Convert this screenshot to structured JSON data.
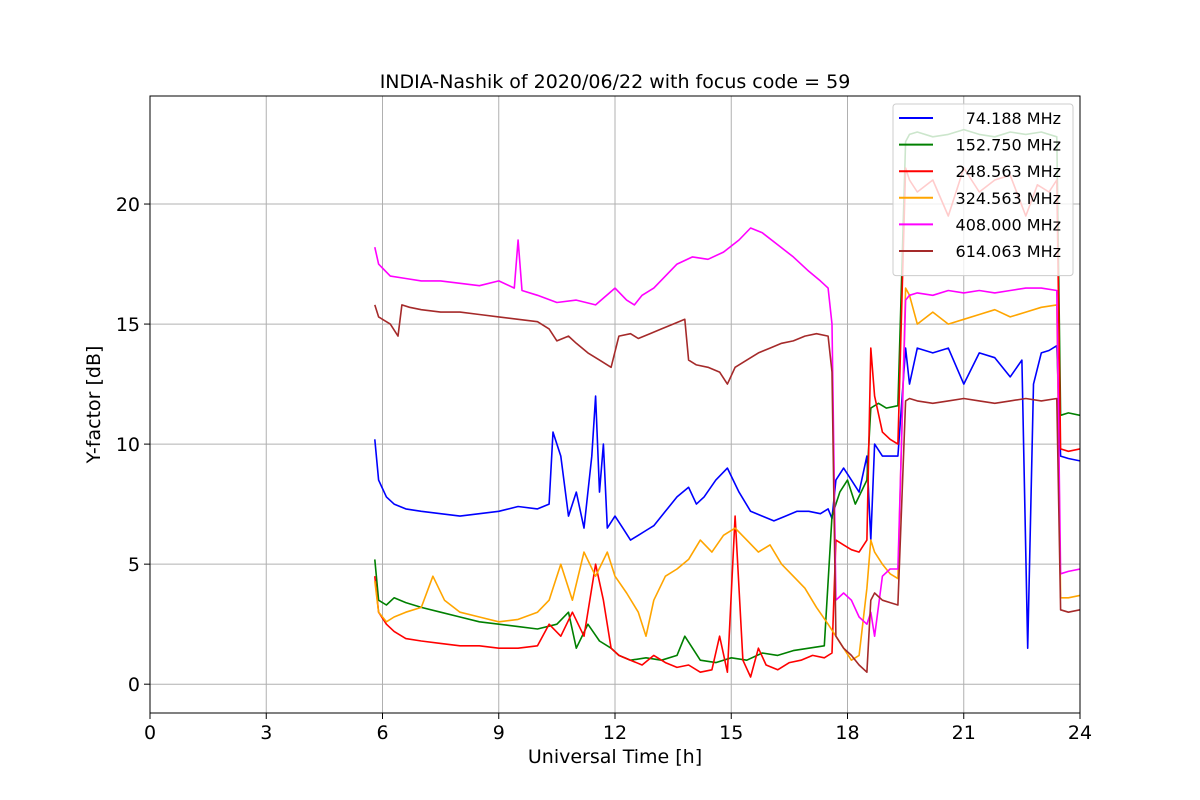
{
  "chart_data": {
    "type": "line",
    "title": "INDIA-Nashik of 2020/06/22 with focus code = 59",
    "xlabel": "Universal Time [h]",
    "ylabel": "Y-factor [dB]",
    "xlim": [
      0,
      24
    ],
    "ylim": [
      -1.2,
      24.5
    ],
    "xticks": [
      0,
      3,
      6,
      9,
      12,
      15,
      18,
      21,
      24
    ],
    "yticks": [
      0,
      5,
      10,
      15,
      20
    ],
    "grid": true,
    "legend_position": "top-right",
    "series": [
      {
        "name": "74.188 MHz",
        "color": "#0000ff",
        "x": [
          5.8,
          5.9,
          6.1,
          6.3,
          6.6,
          7.0,
          7.5,
          8.0,
          8.5,
          9.0,
          9.5,
          10.0,
          10.3,
          10.4,
          10.6,
          10.8,
          11.0,
          11.2,
          11.4,
          11.5,
          11.6,
          11.7,
          11.8,
          12.0,
          12.2,
          12.4,
          12.6,
          12.8,
          13.0,
          13.3,
          13.6,
          13.9,
          14.1,
          14.3,
          14.6,
          14.9,
          15.2,
          15.5,
          15.8,
          16.1,
          16.4,
          16.7,
          17.0,
          17.3,
          17.5,
          17.6,
          17.7,
          17.9,
          18.1,
          18.3,
          18.5,
          18.6,
          18.7,
          18.9,
          19.1,
          19.3,
          19.5,
          19.6,
          19.8,
          20.2,
          20.6,
          21.0,
          21.4,
          21.8,
          22.2,
          22.5,
          22.65,
          22.8,
          23.0,
          23.2,
          23.4,
          23.5,
          23.7,
          24.0
        ],
        "y": [
          10.2,
          8.5,
          7.8,
          7.5,
          7.3,
          7.2,
          7.1,
          7.0,
          7.1,
          7.2,
          7.4,
          7.3,
          7.5,
          10.5,
          9.5,
          7.0,
          8.0,
          6.5,
          9.5,
          12.0,
          8.0,
          10.0,
          6.5,
          7.0,
          6.5,
          6.0,
          6.2,
          6.4,
          6.6,
          7.2,
          7.8,
          8.2,
          7.5,
          7.8,
          8.5,
          9.0,
          8.0,
          7.2,
          7.0,
          6.8,
          7.0,
          7.2,
          7.2,
          7.1,
          7.3,
          6.9,
          8.5,
          9.0,
          8.5,
          8.0,
          9.5,
          6.0,
          10.0,
          9.5,
          9.5,
          9.5,
          14.0,
          12.5,
          14.0,
          13.8,
          14.0,
          12.5,
          13.8,
          13.6,
          12.8,
          13.5,
          1.5,
          12.5,
          13.8,
          13.9,
          14.1,
          9.5,
          9.4,
          9.3
        ]
      },
      {
        "name": "152.750 MHz",
        "color": "#008000",
        "x": [
          5.8,
          5.9,
          6.1,
          6.3,
          6.6,
          7.0,
          7.5,
          8.0,
          8.5,
          9.0,
          9.5,
          10.0,
          10.5,
          10.8,
          11.0,
          11.3,
          11.6,
          11.9,
          12.1,
          12.4,
          12.8,
          13.2,
          13.6,
          13.8,
          14.2,
          14.6,
          15.0,
          15.4,
          15.8,
          16.2,
          16.6,
          17.0,
          17.4,
          17.6,
          17.8,
          18.0,
          18.2,
          18.5,
          18.6,
          18.8,
          19.0,
          19.3,
          19.5,
          19.6,
          19.8,
          20.2,
          20.6,
          21.0,
          21.4,
          21.8,
          22.2,
          22.6,
          23.0,
          23.4,
          23.5,
          23.7,
          24.0
        ],
        "y": [
          5.2,
          3.5,
          3.3,
          3.6,
          3.4,
          3.2,
          3.0,
          2.8,
          2.6,
          2.5,
          2.4,
          2.3,
          2.5,
          3.0,
          1.5,
          2.5,
          1.8,
          1.5,
          1.2,
          1.0,
          1.1,
          1.0,
          1.2,
          2.0,
          1.0,
          0.9,
          1.1,
          1.0,
          1.3,
          1.2,
          1.4,
          1.5,
          1.6,
          7.0,
          8.0,
          8.5,
          7.5,
          8.5,
          11.5,
          11.7,
          11.5,
          11.6,
          22.6,
          22.9,
          23.0,
          22.8,
          22.9,
          23.1,
          22.9,
          22.8,
          23.0,
          22.9,
          23.0,
          22.8,
          11.2,
          11.3,
          11.2
        ]
      },
      {
        "name": "248.563 MHz",
        "color": "#ff0000",
        "x": [
          5.8,
          5.9,
          6.1,
          6.3,
          6.6,
          7.0,
          7.5,
          8.0,
          8.5,
          9.0,
          9.5,
          10.0,
          10.3,
          10.6,
          10.9,
          11.2,
          11.5,
          11.7,
          11.9,
          12.1,
          12.4,
          12.7,
          13.0,
          13.3,
          13.6,
          13.9,
          14.2,
          14.5,
          14.7,
          14.9,
          15.1,
          15.3,
          15.5,
          15.7,
          15.9,
          16.2,
          16.5,
          16.8,
          17.1,
          17.4,
          17.6,
          17.7,
          17.9,
          18.1,
          18.3,
          18.5,
          18.6,
          18.7,
          18.9,
          19.1,
          19.3,
          19.5,
          19.6,
          19.8,
          20.2,
          20.6,
          21.0,
          21.4,
          21.8,
          22.2,
          22.6,
          22.9,
          23.2,
          23.4,
          23.5,
          23.7,
          24.0
        ],
        "y": [
          4.5,
          3.0,
          2.5,
          2.2,
          1.9,
          1.8,
          1.7,
          1.6,
          1.6,
          1.5,
          1.5,
          1.6,
          2.5,
          2.0,
          3.0,
          2.0,
          5.0,
          3.5,
          1.5,
          1.2,
          1.0,
          0.8,
          1.2,
          0.9,
          0.7,
          0.8,
          0.5,
          0.6,
          2.0,
          0.5,
          7.0,
          1.0,
          0.3,
          1.5,
          0.8,
          0.6,
          0.9,
          1.0,
          1.2,
          1.1,
          1.3,
          6.0,
          5.8,
          5.6,
          5.5,
          6.0,
          14.0,
          12.0,
          10.5,
          10.2,
          10.0,
          21.5,
          21.0,
          20.5,
          21.0,
          19.5,
          21.5,
          20.5,
          21.0,
          21.2,
          19.5,
          20.8,
          20.5,
          21.0,
          9.8,
          9.7,
          9.8
        ]
      },
      {
        "name": "324.563 MHz",
        "color": "#ffa500",
        "x": [
          5.8,
          5.9,
          6.1,
          6.3,
          6.6,
          7.0,
          7.3,
          7.6,
          8.0,
          8.5,
          9.0,
          9.5,
          10.0,
          10.3,
          10.6,
          10.9,
          11.2,
          11.5,
          11.8,
          12.0,
          12.3,
          12.6,
          12.8,
          13.0,
          13.3,
          13.6,
          13.9,
          14.2,
          14.5,
          14.8,
          15.1,
          15.4,
          15.7,
          16.0,
          16.3,
          16.6,
          16.9,
          17.2,
          17.5,
          17.7,
          17.9,
          18.1,
          18.3,
          18.5,
          18.6,
          18.7,
          18.9,
          19.1,
          19.3,
          19.5,
          19.6,
          19.8,
          20.2,
          20.6,
          21.0,
          21.4,
          21.8,
          22.2,
          22.6,
          23.0,
          23.4,
          23.5,
          23.7,
          24.0
        ],
        "y": [
          4.3,
          3.0,
          2.6,
          2.8,
          3.0,
          3.2,
          4.5,
          3.5,
          3.0,
          2.8,
          2.6,
          2.7,
          3.0,
          3.5,
          5.0,
          3.5,
          5.5,
          4.5,
          5.5,
          4.5,
          3.8,
          3.0,
          2.0,
          3.5,
          4.5,
          4.8,
          5.2,
          6.0,
          5.5,
          6.2,
          6.5,
          6.0,
          5.5,
          5.8,
          5.0,
          4.5,
          4.0,
          3.2,
          2.5,
          2.0,
          1.5,
          1.0,
          1.2,
          4.0,
          6.0,
          5.5,
          5.0,
          4.6,
          4.4,
          16.5,
          16.2,
          15.0,
          15.5,
          15.0,
          15.2,
          15.4,
          15.6,
          15.3,
          15.5,
          15.7,
          15.8,
          3.6,
          3.6,
          3.7
        ]
      },
      {
        "name": "408.000 MHz",
        "color": "#ff00ff",
        "x": [
          5.8,
          5.9,
          6.2,
          6.6,
          7.0,
          7.5,
          8.0,
          8.5,
          9.0,
          9.4,
          9.5,
          9.6,
          10.0,
          10.5,
          11.0,
          11.5,
          12.0,
          12.3,
          12.5,
          12.7,
          13.0,
          13.3,
          13.6,
          14.0,
          14.4,
          14.8,
          15.2,
          15.5,
          15.8,
          16.2,
          16.6,
          17.0,
          17.3,
          17.5,
          17.6,
          17.7,
          17.9,
          18.1,
          18.3,
          18.5,
          18.6,
          18.7,
          18.9,
          19.1,
          19.3,
          19.5,
          19.6,
          19.8,
          20.2,
          20.6,
          21.0,
          21.4,
          21.8,
          22.2,
          22.6,
          23.0,
          23.4,
          23.5,
          23.7,
          24.0
        ],
        "y": [
          18.2,
          17.5,
          17.0,
          16.9,
          16.8,
          16.8,
          16.7,
          16.6,
          16.8,
          16.5,
          18.5,
          16.4,
          16.2,
          15.9,
          16.0,
          15.8,
          16.5,
          16.0,
          15.8,
          16.2,
          16.5,
          17.0,
          17.5,
          17.8,
          17.7,
          18.0,
          18.5,
          19.0,
          18.8,
          18.3,
          17.8,
          17.2,
          16.8,
          16.5,
          15.0,
          3.5,
          3.8,
          3.5,
          2.8,
          2.5,
          3.0,
          2.0,
          4.5,
          4.8,
          4.8,
          16.0,
          16.2,
          16.3,
          16.2,
          16.4,
          16.3,
          16.4,
          16.3,
          16.4,
          16.5,
          16.5,
          16.4,
          4.6,
          4.7,
          4.8
        ]
      },
      {
        "name": "614.063 MHz",
        "color": "#a52a2a",
        "x": [
          5.8,
          5.9,
          6.2,
          6.4,
          6.5,
          6.7,
          7.0,
          7.5,
          8.0,
          8.5,
          9.0,
          9.5,
          10.0,
          10.3,
          10.5,
          10.8,
          11.0,
          11.3,
          11.6,
          11.9,
          12.1,
          12.4,
          12.6,
          12.9,
          13.2,
          13.5,
          13.8,
          13.9,
          14.1,
          14.4,
          14.7,
          14.9,
          15.1,
          15.4,
          15.7,
          16.0,
          16.3,
          16.6,
          16.9,
          17.2,
          17.5,
          17.6,
          17.7,
          17.9,
          18.1,
          18.3,
          18.5,
          18.6,
          18.7,
          18.9,
          19.1,
          19.3,
          19.5,
          19.6,
          19.8,
          20.2,
          20.6,
          21.0,
          21.4,
          21.8,
          22.2,
          22.6,
          23.0,
          23.4,
          23.5,
          23.7,
          24.0
        ],
        "y": [
          15.8,
          15.3,
          15.0,
          14.5,
          15.8,
          15.7,
          15.6,
          15.5,
          15.5,
          15.4,
          15.3,
          15.2,
          15.1,
          14.8,
          14.3,
          14.5,
          14.2,
          13.8,
          13.5,
          13.2,
          14.5,
          14.6,
          14.4,
          14.6,
          14.8,
          15.0,
          15.2,
          13.5,
          13.3,
          13.2,
          13.0,
          12.5,
          13.2,
          13.5,
          13.8,
          14.0,
          14.2,
          14.3,
          14.5,
          14.6,
          14.5,
          13.0,
          2.0,
          1.5,
          1.2,
          0.8,
          0.5,
          3.5,
          3.8,
          3.5,
          3.4,
          3.3,
          11.8,
          11.9,
          11.8,
          11.7,
          11.8,
          11.9,
          11.8,
          11.7,
          11.8,
          11.9,
          11.8,
          11.9,
          3.1,
          3.0,
          3.1
        ]
      }
    ]
  }
}
